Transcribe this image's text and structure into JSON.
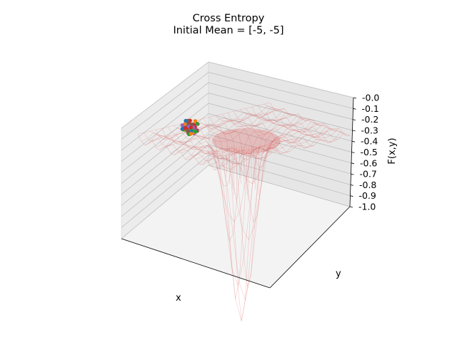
{
  "chart_data": {
    "type": "surface",
    "title": "Cross Entropy",
    "subtitle": "Initial Mean = [-5, -5]",
    "xlabel": "x",
    "ylabel": "y",
    "zlabel": "F(x,y)",
    "zlim": [
      -1.0,
      0.0
    ],
    "z_ticks": [
      "-0.0",
      "-0.1",
      "-0.2",
      "-0.3",
      "-0.4",
      "-0.5",
      "-0.6",
      "-0.7",
      "-0.8",
      "-0.9",
      "-1.0"
    ],
    "surface_color": "#d9534f",
    "sample_colors": [
      "#1f77b4",
      "#ff7f0e",
      "#2ca02c",
      "#d62728",
      "#9467bd",
      "#8c564b"
    ],
    "grid": true
  }
}
